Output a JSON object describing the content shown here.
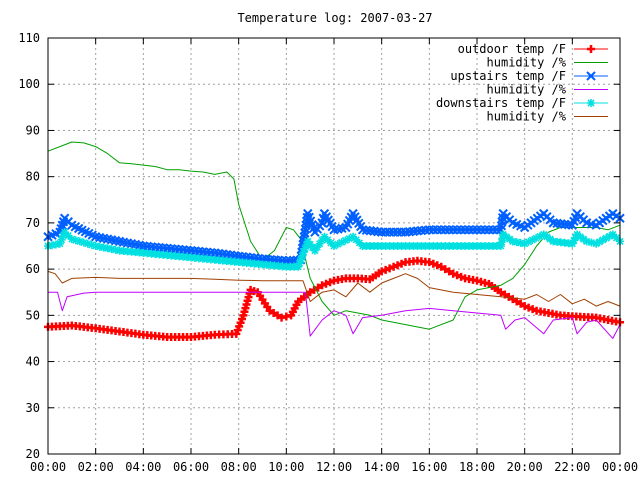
{
  "chart_data": {
    "type": "line",
    "title": "Temperature log: 2007-03-27",
    "xlabel": "",
    "ylabel": "",
    "xlim": [
      0,
      24
    ],
    "ylim": [
      20,
      110
    ],
    "grid": true,
    "legend_position": "top-right",
    "x_ticks": [
      "00:00",
      "02:00",
      "04:00",
      "06:00",
      "08:00",
      "10:00",
      "12:00",
      "14:00",
      "16:00",
      "18:00",
      "20:00",
      "22:00",
      "00:00"
    ],
    "y_ticks": [
      20,
      30,
      40,
      50,
      60,
      70,
      80,
      90,
      100,
      110
    ],
    "series": [
      {
        "name": "outdoor temp /F",
        "color": "#ff0000",
        "marker": "plus",
        "points": [
          [
            0,
            47.5
          ],
          [
            1,
            47.8
          ],
          [
            2,
            47.2
          ],
          [
            3,
            46.5
          ],
          [
            4,
            45.8
          ],
          [
            5,
            45.3
          ],
          [
            6,
            45.3
          ],
          [
            7,
            45.8
          ],
          [
            7.9,
            46
          ],
          [
            8.2,
            50
          ],
          [
            8.5,
            55.5
          ],
          [
            8.8,
            55
          ],
          [
            9.3,
            51
          ],
          [
            9.8,
            49.5
          ],
          [
            10.2,
            50
          ],
          [
            10.5,
            53
          ],
          [
            11,
            55
          ],
          [
            11.5,
            56.5
          ],
          [
            12,
            57.5
          ],
          [
            12.5,
            58
          ],
          [
            13,
            58
          ],
          [
            13.5,
            57.8
          ],
          [
            14,
            59.5
          ],
          [
            14.5,
            60.5
          ],
          [
            15,
            61.5
          ],
          [
            15.5,
            61.8
          ],
          [
            16,
            61.5
          ],
          [
            16.5,
            60.5
          ],
          [
            17,
            59
          ],
          [
            17.5,
            58
          ],
          [
            18,
            57.5
          ],
          [
            18.5,
            56.8
          ],
          [
            19,
            55
          ],
          [
            19.5,
            53.5
          ],
          [
            20,
            52
          ],
          [
            20.5,
            51
          ],
          [
            21,
            50.5
          ],
          [
            21.5,
            50
          ],
          [
            22,
            49.8
          ],
          [
            23,
            49.5
          ],
          [
            24,
            48.5
          ]
        ]
      },
      {
        "name": "humidity /%",
        "color": "#00a000",
        "marker": "none",
        "points": [
          [
            0,
            85.5
          ],
          [
            0.5,
            86.5
          ],
          [
            1,
            87.5
          ],
          [
            1.5,
            87.3
          ],
          [
            2,
            86.5
          ],
          [
            2.5,
            85
          ],
          [
            3,
            83
          ],
          [
            3.5,
            82.8
          ],
          [
            4,
            82.5
          ],
          [
            4.5,
            82.2
          ],
          [
            5,
            81.5
          ],
          [
            5.5,
            81.5
          ],
          [
            6,
            81.2
          ],
          [
            6.5,
            81
          ],
          [
            7,
            80.5
          ],
          [
            7.5,
            81
          ],
          [
            7.8,
            79.5
          ],
          [
            8,
            74
          ],
          [
            8.5,
            66
          ],
          [
            9,
            62
          ],
          [
            9.5,
            64
          ],
          [
            10,
            69
          ],
          [
            10.3,
            68.5
          ],
          [
            10.6,
            66.5
          ],
          [
            11,
            58
          ],
          [
            11.5,
            53
          ],
          [
            12,
            50
          ],
          [
            12.5,
            51
          ],
          [
            13,
            50.5
          ],
          [
            13.5,
            50
          ],
          [
            14,
            49
          ],
          [
            15,
            48
          ],
          [
            16,
            47
          ],
          [
            17,
            49
          ],
          [
            17.5,
            54
          ],
          [
            18,
            55.5
          ],
          [
            18.5,
            56
          ],
          [
            19,
            56.5
          ],
          [
            19.5,
            58
          ],
          [
            20,
            61
          ],
          [
            20.5,
            65
          ],
          [
            21,
            68
          ],
          [
            21.5,
            69
          ],
          [
            22,
            69
          ],
          [
            22.5,
            69
          ],
          [
            23,
            69
          ],
          [
            23.5,
            68.5
          ],
          [
            24,
            69.5
          ]
        ]
      },
      {
        "name": "upstairs temp /F",
        "color": "#0060ff",
        "marker": "x",
        "points": [
          [
            0,
            67
          ],
          [
            0.5,
            68
          ],
          [
            0.7,
            71
          ],
          [
            1,
            69.5
          ],
          [
            2,
            67
          ],
          [
            3,
            66
          ],
          [
            4,
            65
          ],
          [
            5,
            64.5
          ],
          [
            6,
            64
          ],
          [
            7,
            63.5
          ],
          [
            8,
            62.8
          ],
          [
            9,
            62.2
          ],
          [
            10,
            61.8
          ],
          [
            10.6,
            62
          ],
          [
            10.9,
            72
          ],
          [
            11.2,
            68
          ],
          [
            11.5,
            70
          ],
          [
            11.6,
            72
          ],
          [
            12,
            68.5
          ],
          [
            12.5,
            69
          ],
          [
            12.8,
            72
          ],
          [
            13.2,
            68.5
          ],
          [
            14,
            68
          ],
          [
            15,
            68
          ],
          [
            16,
            68.5
          ],
          [
            17,
            68.5
          ],
          [
            18,
            68.5
          ],
          [
            19,
            68.5
          ],
          [
            19.1,
            72
          ],
          [
            19.5,
            70
          ],
          [
            20,
            69
          ],
          [
            20.8,
            72
          ],
          [
            21.2,
            70
          ],
          [
            22,
            69.5
          ],
          [
            22.2,
            72
          ],
          [
            22.6,
            70
          ],
          [
            23,
            69.5
          ],
          [
            23.7,
            72
          ],
          [
            24,
            71
          ]
        ]
      },
      {
        "name": "humidity /%",
        "color": "#c000ff",
        "marker": "none",
        "points": [
          [
            0,
            55
          ],
          [
            0.4,
            55
          ],
          [
            0.6,
            51
          ],
          [
            0.8,
            54
          ],
          [
            1.5,
            54.8
          ],
          [
            2,
            55
          ],
          [
            3,
            55
          ],
          [
            4,
            55
          ],
          [
            5,
            55
          ],
          [
            6,
            55
          ],
          [
            7,
            55
          ],
          [
            8,
            55
          ],
          [
            9,
            55
          ],
          [
            10,
            55
          ],
          [
            10.8,
            55
          ],
          [
            11,
            45.5
          ],
          [
            11.5,
            49
          ],
          [
            12,
            51
          ],
          [
            12.5,
            50
          ],
          [
            12.8,
            46
          ],
          [
            13.2,
            49.5
          ],
          [
            14,
            50
          ],
          [
            15,
            51
          ],
          [
            16,
            51.5
          ],
          [
            17,
            51
          ],
          [
            18,
            50.5
          ],
          [
            19,
            50
          ],
          [
            19.2,
            47
          ],
          [
            19.6,
            49
          ],
          [
            20,
            49.5
          ],
          [
            20.8,
            46
          ],
          [
            21.2,
            49
          ],
          [
            22,
            49.5
          ],
          [
            22.2,
            46
          ],
          [
            22.6,
            48.5
          ],
          [
            23,
            49
          ],
          [
            23.7,
            45
          ],
          [
            24,
            48
          ]
        ]
      },
      {
        "name": "downstairs temp /F",
        "color": "#00e0e0",
        "marker": "asterisk",
        "points": [
          [
            0,
            65
          ],
          [
            0.5,
            65.5
          ],
          [
            0.7,
            68
          ],
          [
            1,
            66.5
          ],
          [
            2,
            65
          ],
          [
            3,
            64
          ],
          [
            4,
            63.5
          ],
          [
            5,
            63
          ],
          [
            6,
            62.5
          ],
          [
            7,
            62
          ],
          [
            8,
            61.5
          ],
          [
            9,
            61
          ],
          [
            10,
            60.5
          ],
          [
            10.5,
            60.5
          ],
          [
            10.9,
            66
          ],
          [
            11.2,
            64
          ],
          [
            11.6,
            67
          ],
          [
            12,
            65
          ],
          [
            12.8,
            67
          ],
          [
            13.2,
            65
          ],
          [
            14,
            65
          ],
          [
            15,
            65
          ],
          [
            16,
            65
          ],
          [
            17,
            65
          ],
          [
            18,
            65
          ],
          [
            19,
            65
          ],
          [
            19.1,
            67.5
          ],
          [
            19.5,
            66
          ],
          [
            20,
            65.5
          ],
          [
            20.8,
            67.5
          ],
          [
            21.2,
            66
          ],
          [
            22,
            65.5
          ],
          [
            22.2,
            67.5
          ],
          [
            22.6,
            66
          ],
          [
            23,
            65.5
          ],
          [
            23.7,
            67.5
          ],
          [
            24,
            66
          ]
        ]
      },
      {
        "name": "humidity /%",
        "color": "#a04000",
        "marker": "none",
        "points": [
          [
            0,
            59.5
          ],
          [
            0.3,
            59
          ],
          [
            0.6,
            57
          ],
          [
            1,
            58
          ],
          [
            2,
            58.2
          ],
          [
            3,
            58
          ],
          [
            4,
            58
          ],
          [
            5,
            58
          ],
          [
            6,
            58
          ],
          [
            7,
            57.8
          ],
          [
            8,
            57.6
          ],
          [
            9,
            57.5
          ],
          [
            10,
            57.5
          ],
          [
            10.7,
            57.5
          ],
          [
            11,
            53
          ],
          [
            11.5,
            55
          ],
          [
            12,
            55.5
          ],
          [
            12.5,
            54
          ],
          [
            13,
            57
          ],
          [
            13.5,
            55
          ],
          [
            14,
            57
          ],
          [
            14.5,
            58
          ],
          [
            15,
            59
          ],
          [
            15.5,
            58
          ],
          [
            16,
            56
          ],
          [
            17,
            55
          ],
          [
            18,
            54.5
          ],
          [
            19,
            54
          ],
          [
            20,
            53.5
          ],
          [
            20.5,
            54.5
          ],
          [
            21,
            53
          ],
          [
            21.5,
            54.5
          ],
          [
            22,
            52.5
          ],
          [
            22.5,
            53.5
          ],
          [
            23,
            52
          ],
          [
            23.5,
            53
          ],
          [
            24,
            52
          ]
        ]
      }
    ]
  }
}
